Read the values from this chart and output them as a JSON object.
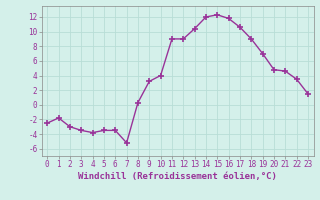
{
  "x": [
    0,
    1,
    2,
    3,
    4,
    5,
    6,
    7,
    8,
    9,
    10,
    11,
    12,
    13,
    14,
    15,
    16,
    17,
    18,
    19,
    20,
    21,
    22,
    23
  ],
  "y": [
    -2.5,
    -1.8,
    -3.0,
    -3.5,
    -3.8,
    -3.5,
    -3.5,
    -5.2,
    0.3,
    3.2,
    4.0,
    9.0,
    9.0,
    10.4,
    12.0,
    12.3,
    11.8,
    10.6,
    9.0,
    7.0,
    4.8,
    4.6,
    3.5,
    1.5
  ],
  "line_color": "#993399",
  "marker": "+",
  "marker_size": 4,
  "marker_lw": 1.2,
  "xlabel": "Windchill (Refroidissement éolien,°C)",
  "xlim": [
    -0.5,
    23.5
  ],
  "ylim": [
    -7,
    13.5
  ],
  "yticks": [
    -6,
    -4,
    -2,
    0,
    2,
    4,
    6,
    8,
    10,
    12
  ],
  "xticks": [
    0,
    1,
    2,
    3,
    4,
    5,
    6,
    7,
    8,
    9,
    10,
    11,
    12,
    13,
    14,
    15,
    16,
    17,
    18,
    19,
    20,
    21,
    22,
    23
  ],
  "grid_color": "#b8ddd6",
  "bg_color": "#d4f0ea",
  "xlabel_fontsize": 6.5,
  "tick_fontsize": 5.5,
  "line_width": 1.0
}
